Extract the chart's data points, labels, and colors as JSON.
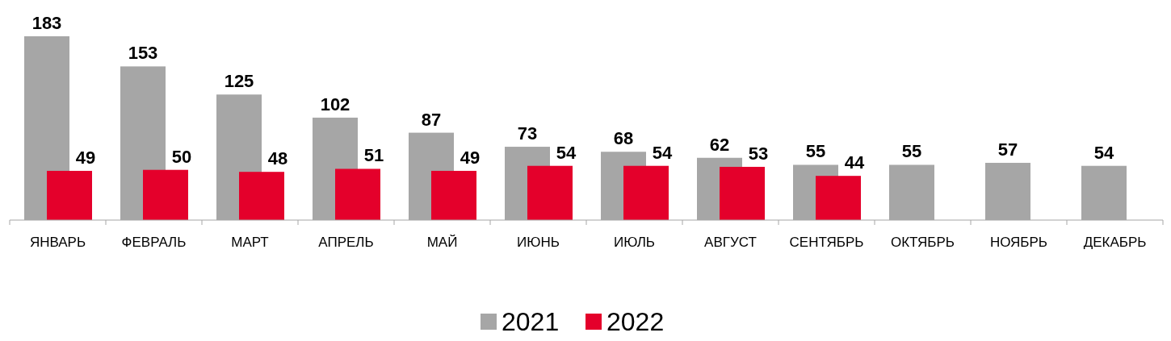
{
  "chart_data": {
    "type": "bar",
    "categories": [
      "ЯНВАРЬ",
      "ФЕВРАЛЬ",
      "МАРТ",
      "АПРЕЛЬ",
      "МАЙ",
      "ИЮНЬ",
      "ИЮЛЬ",
      "АВГУСТ",
      "СЕНТЯБРЬ",
      "ОКТЯБРЬ",
      "НОЯБРЬ",
      "ДЕКАБРЬ"
    ],
    "series": [
      {
        "name": "2021",
        "color": "#a6a6a6",
        "values": [
          183,
          153,
          125,
          102,
          87,
          73,
          68,
          62,
          55,
          55,
          57,
          54
        ]
      },
      {
        "name": "2022",
        "color": "#e4002b",
        "values": [
          49,
          50,
          48,
          51,
          49,
          54,
          54,
          53,
          44,
          null,
          null,
          null
        ]
      }
    ],
    "data_labels": true,
    "legend": "bottom",
    "grid": false
  }
}
